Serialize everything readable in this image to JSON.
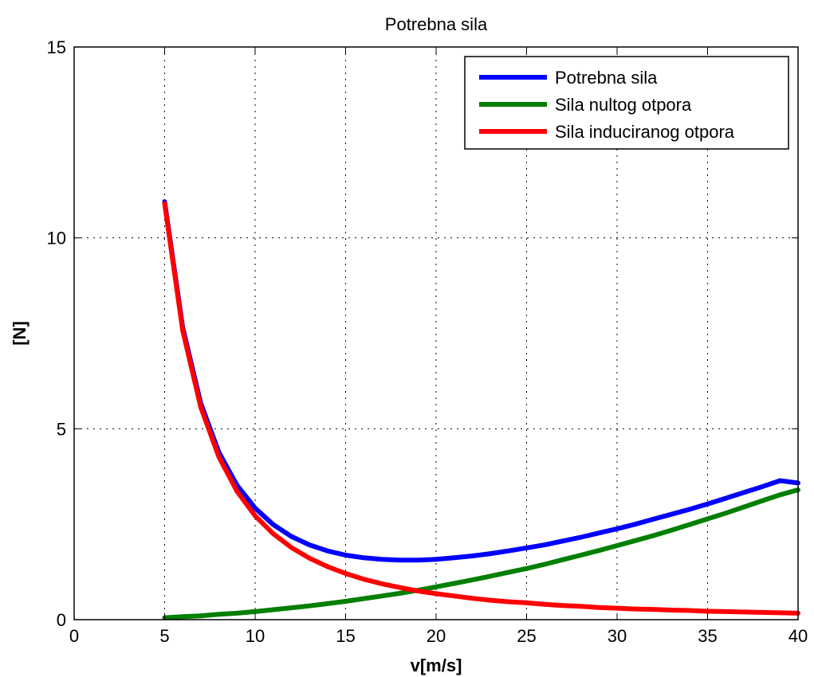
{
  "chart_data": {
    "type": "line",
    "title": "Potrebna sila",
    "xlabel": "v[m/s]",
    "ylabel": "[N]",
    "xlim": [
      0,
      40
    ],
    "ylim": [
      0,
      15
    ],
    "xticks": [
      0,
      5,
      10,
      15,
      20,
      25,
      30,
      35,
      40
    ],
    "yticks": [
      0,
      5,
      10,
      15
    ],
    "grid": true,
    "legend_position": "top-right",
    "x": [
      5,
      6,
      7,
      8,
      9,
      10,
      11,
      12,
      13,
      14,
      15,
      16,
      17,
      18,
      19,
      20,
      21,
      22,
      23,
      24,
      25,
      26,
      27,
      28,
      29,
      30,
      31,
      32,
      33,
      34,
      35,
      36,
      37,
      38,
      39,
      40
    ],
    "series": [
      {
        "name": "Potrebna sila",
        "color": "#0000ff",
        "values": [
          10.95,
          7.65,
          5.66,
          4.38,
          3.52,
          2.92,
          2.49,
          2.18,
          1.96,
          1.8,
          1.69,
          1.62,
          1.58,
          1.56,
          1.56,
          1.58,
          1.62,
          1.67,
          1.73,
          1.8,
          1.88,
          1.96,
          2.06,
          2.16,
          2.27,
          2.38,
          2.5,
          2.63,
          2.76,
          2.89,
          3.03,
          3.18,
          3.33,
          3.48,
          3.64,
          3.58
        ]
      },
      {
        "name": "Sila nultog otpora",
        "color": "#007f00",
        "values": [
          0.05,
          0.08,
          0.1,
          0.14,
          0.17,
          0.21,
          0.26,
          0.31,
          0.36,
          0.42,
          0.48,
          0.55,
          0.62,
          0.69,
          0.77,
          0.86,
          0.95,
          1.04,
          1.14,
          1.24,
          1.34,
          1.45,
          1.57,
          1.69,
          1.81,
          1.94,
          2.07,
          2.2,
          2.34,
          2.49,
          2.64,
          2.79,
          2.95,
          3.11,
          3.27,
          3.4
        ]
      },
      {
        "name": "Sila induciranog otpora",
        "color": "#ff0000",
        "values": [
          10.9,
          7.57,
          5.56,
          4.26,
          3.36,
          2.72,
          2.25,
          1.89,
          1.61,
          1.39,
          1.21,
          1.06,
          0.94,
          0.84,
          0.75,
          0.68,
          0.62,
          0.56,
          0.51,
          0.47,
          0.44,
          0.4,
          0.37,
          0.35,
          0.32,
          0.3,
          0.28,
          0.27,
          0.25,
          0.24,
          0.22,
          0.21,
          0.2,
          0.19,
          0.18,
          0.17
        ]
      }
    ]
  }
}
